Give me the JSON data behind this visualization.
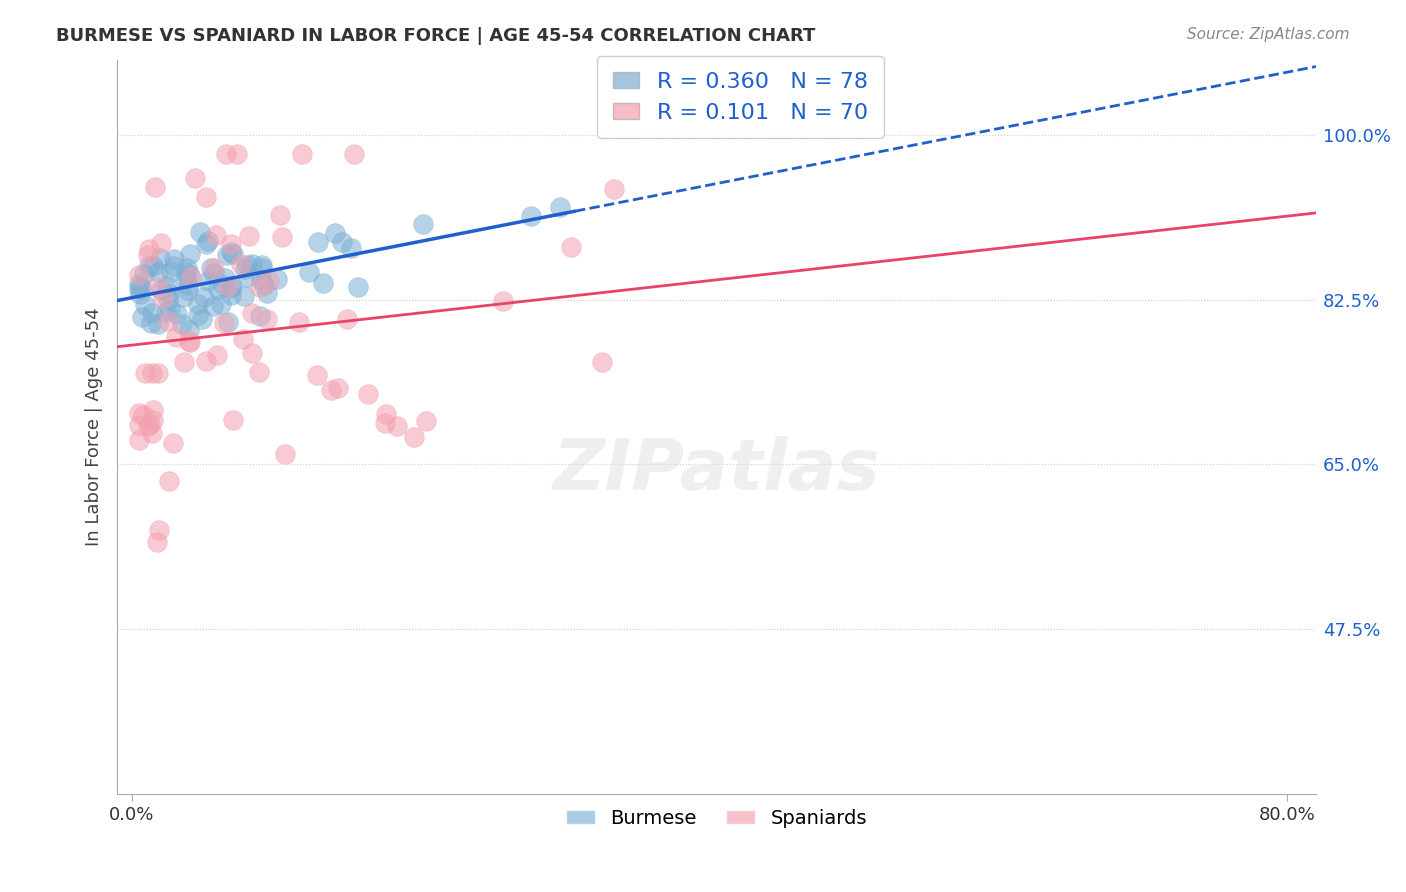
{
  "title": "BURMESE VS SPANIARD IN LABOR FORCE | AGE 45-54 CORRELATION CHART",
  "source": "Source: ZipAtlas.com",
  "ylabel": "In Labor Force | Age 45-54",
  "xlim_min": -0.01,
  "xlim_max": 0.82,
  "ylim_min": 0.3,
  "ylim_max": 1.08,
  "yticks": [
    0.475,
    0.65,
    0.825,
    1.0
  ],
  "ytick_labels": [
    "47.5%",
    "65.0%",
    "82.5%",
    "100.0%"
  ],
  "xtick_vals": [
    0.0,
    0.8
  ],
  "xtick_labels": [
    "0.0%",
    "80.0%"
  ],
  "blue_R": 0.36,
  "blue_N": 78,
  "pink_R": 0.101,
  "pink_N": 70,
  "blue_color": "#7BAFD4",
  "pink_color": "#F4A0B0",
  "trend_blue": "#2060CC",
  "trend_pink": "#E8436A",
  "legend_blue_label": "Burmese",
  "legend_pink_label": "Spaniards",
  "watermark": "ZIPatlas",
  "blue_seed": 123,
  "pink_seed": 456
}
